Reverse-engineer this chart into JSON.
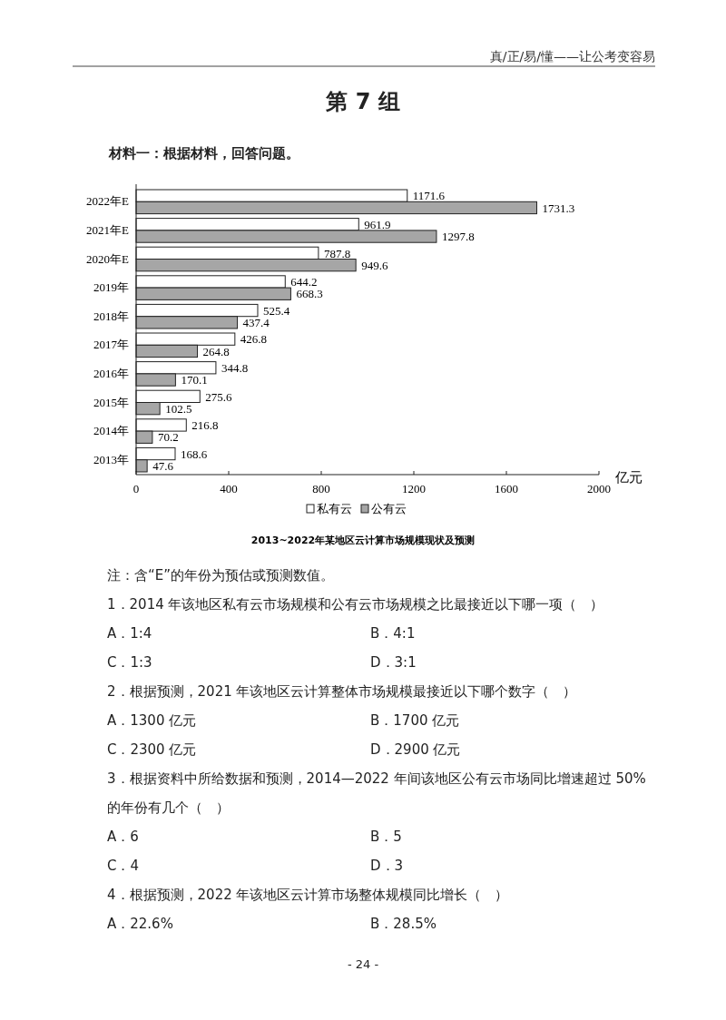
{
  "chart_data": {
    "type": "bar",
    "orientation": "horizontal",
    "title": "第 7 组",
    "subtitle": "材料一：根据材料，回答问题。",
    "categories": [
      "2022年E",
      "2021年E",
      "2020年E",
      "2019年",
      "2018年",
      "2017年",
      "2016年",
      "2015年",
      "2014年",
      "2013年"
    ],
    "series": [
      {
        "name": "私有云",
        "color": "#ffffff",
        "values": [
          1171.6,
          961.9,
          787.8,
          644.2,
          525.4,
          426.8,
          344.8,
          275.6,
          216.8,
          168.6
        ]
      },
      {
        "name": "公有云",
        "color": "#a6a6a6",
        "values": [
          1731.3,
          1297.8,
          949.6,
          668.3,
          437.4,
          264.8,
          170.1,
          102.5,
          70.2,
          47.6
        ]
      }
    ],
    "xlim": [
      0,
      2000
    ],
    "xticks": [
      0,
      400,
      800,
      1200,
      1600,
      2000
    ],
    "xlabel": "亿元",
    "legend": "bottom",
    "data_labels": true,
    "grid": false,
    "annotations": [
      "真/正/易/懂——让公考变容易",
      "2013~2022年某地区云计算市场规模现状及预测",
      "注：含“E”的年份为预估或预测数值。",
      "1．2014 年该地区私有云市场规模和公有云市场规模之比最接近以下哪一项（　）",
      "A．1:4\tB．4:1",
      "C．1:3\tD．3:1",
      "2．根据预测，2021 年该地区云计算整体市场规模最接近以下哪个数字（　）",
      "A．1300 亿元\tB．1700 亿元",
      "C．2300 亿元\tD．2900 亿元",
      "3．根据资料中所给数据和预测，2014—2022 年间该地区公有云市场同比增速超过 50%的年份有几个（　）",
      "A．6\tB．5",
      "C．4\tD．3",
      "4．根据预测，2022 年该地区云计算市场整体规模同比增长（　）",
      "A．22.6%\tB．28.5%",
      "- 24 -"
    ]
  }
}
